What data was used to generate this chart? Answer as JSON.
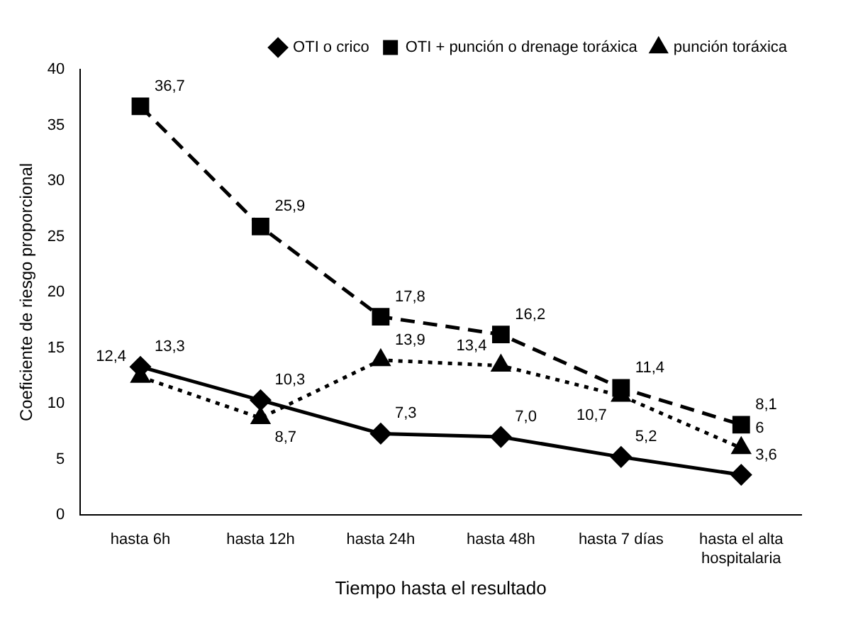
{
  "chart_data": {
    "type": "line",
    "xlabel": "Tiempo hasta el resultado",
    "ylabel": "Coeficiente de riesgo proporcional",
    "categories": [
      "hasta 6h",
      "hasta 12h",
      "hasta 24h",
      "hasta 48h",
      "hasta 7 días",
      "hasta el alta hospitalaria"
    ],
    "series": [
      {
        "name": "OTI o crico",
        "color": "#000000",
        "marker": "diamond",
        "line_style": "solid",
        "values": [
          13.3,
          10.3,
          7.3,
          7.0,
          5.2,
          3.6
        ],
        "value_labels": [
          "13,3",
          "10,3",
          "7,3",
          "7,0",
          "5,2",
          "3,6"
        ]
      },
      {
        "name": "OTI + punción o drenage toráxica",
        "color": "#000000",
        "marker": "square",
        "line_style": "dashed",
        "values": [
          36.7,
          25.9,
          17.8,
          16.2,
          11.4,
          8.1
        ],
        "value_labels": [
          "36,7",
          "25,9",
          "17,8",
          "16,2",
          "11,4",
          "8,1"
        ]
      },
      {
        "name": "punción toráxica",
        "color": "#000000",
        "marker": "triangle",
        "line_style": "dotted",
        "values": [
          12.4,
          8.7,
          13.9,
          13.4,
          10.7,
          6
        ],
        "value_labels": [
          "12,4",
          "8,7",
          "13,9",
          "13,4",
          "10,7",
          "6"
        ]
      }
    ],
    "ylim": [
      0,
      40
    ],
    "yticks": [
      0,
      5,
      10,
      15,
      20,
      25,
      30,
      35,
      40
    ],
    "grid": false,
    "legend": "top right"
  }
}
